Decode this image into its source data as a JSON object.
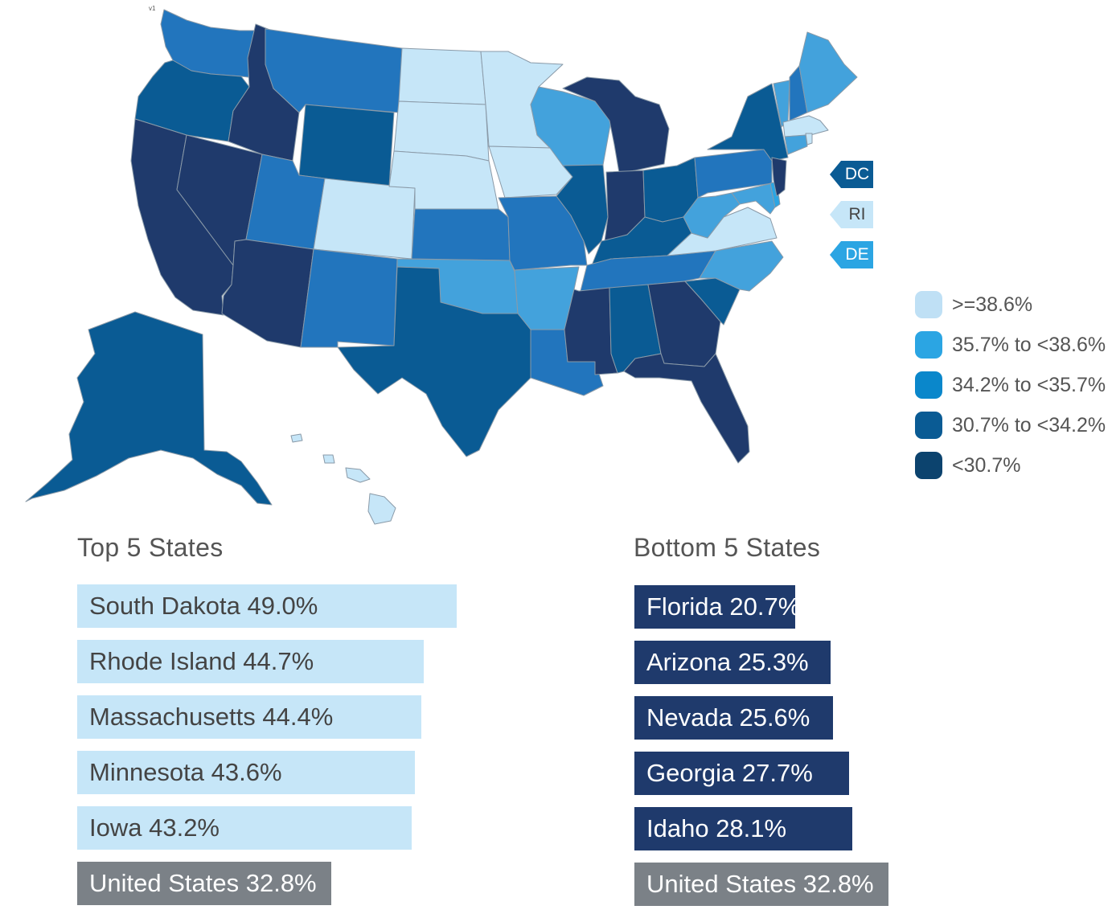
{
  "map": {
    "version_label": "v1",
    "colors": {
      "lightest": "#c6e6f8",
      "light": "#43a2dc",
      "mid": "#2275bd",
      "dark": "#0a5b94",
      "darkest": "#1f3a6c"
    },
    "small_state_tags": [
      {
        "abbr": "DC",
        "color": "#0a5b94",
        "text_color": "#ffffff"
      },
      {
        "abbr": "RI",
        "color": "#c6e6f8",
        "text_color": "#444444"
      },
      {
        "abbr": "DE",
        "color": "#2ba5e3",
        "text_color": "#ffffff"
      }
    ]
  },
  "legend": {
    "items": [
      {
        "label": ">=38.6%",
        "color": "#bfe0f5"
      },
      {
        "label": "35.7% to <38.6%",
        "color": "#2ba5e3"
      },
      {
        "label": "34.2% to <35.7%",
        "color": "#0a87cb"
      },
      {
        "label": "30.7% to <34.2%",
        "color": "#0a5b94"
      },
      {
        "label": "<30.7%",
        "color": "#0c436e"
      }
    ]
  },
  "top5": {
    "title": "Top 5 States",
    "items": [
      {
        "label": "South Dakota 49.0%",
        "value": 49.0
      },
      {
        "label": "Rhode Island 44.7%",
        "value": 44.7
      },
      {
        "label": "Massachusetts 44.4%",
        "value": 44.4
      },
      {
        "label": "Minnesota 43.6%",
        "value": 43.6
      },
      {
        "label": "Iowa 43.2%",
        "value": 43.2
      }
    ],
    "us": {
      "label": "United States 32.8%",
      "value": 32.8
    }
  },
  "bottom5": {
    "title": "Bottom 5 States",
    "items": [
      {
        "label": "Florida 20.7%",
        "value": 20.7
      },
      {
        "label": "Arizona 25.3%",
        "value": 25.3
      },
      {
        "label": "Nevada 25.6%",
        "value": 25.6
      },
      {
        "label": "Georgia 27.7%",
        "value": 27.7
      },
      {
        "label": "Idaho 28.1%",
        "value": 28.1
      }
    ],
    "us": {
      "label": "United States 32.8%",
      "value": 32.8
    }
  }
}
